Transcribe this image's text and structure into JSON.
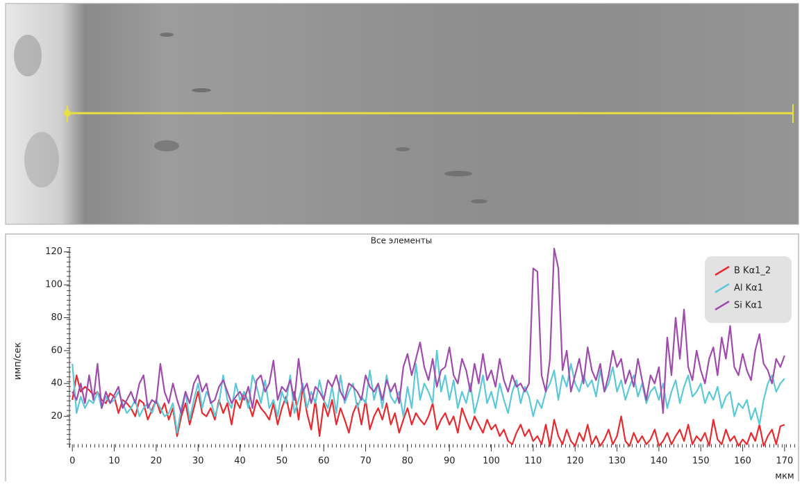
{
  "chart_data": {
    "type": "line",
    "title": "Все элементы",
    "x_label": "мкм",
    "y_label": "имп/сек",
    "x": [
      0,
      1,
      2,
      3,
      4,
      5,
      6,
      7,
      8,
      9,
      10,
      11,
      12,
      13,
      14,
      15,
      16,
      17,
      18,
      19,
      20,
      21,
      22,
      23,
      24,
      25,
      26,
      27,
      28,
      29,
      30,
      31,
      32,
      33,
      34,
      35,
      36,
      37,
      38,
      39,
      40,
      41,
      42,
      43,
      44,
      45,
      46,
      47,
      48,
      49,
      50,
      51,
      52,
      53,
      54,
      55,
      56,
      57,
      58,
      59,
      60,
      61,
      62,
      63,
      64,
      65,
      66,
      67,
      68,
      69,
      70,
      71,
      72,
      73,
      74,
      75,
      76,
      77,
      78,
      79,
      80,
      81,
      82,
      83,
      84,
      85,
      86,
      87,
      88,
      89,
      90,
      91,
      92,
      93,
      94,
      95,
      96,
      97,
      98,
      99,
      100,
      101,
      102,
      103,
      104,
      105,
      106,
      107,
      108,
      109,
      110,
      111,
      112,
      113,
      114,
      115,
      116,
      117,
      118,
      119,
      120,
      121,
      122,
      123,
      124,
      125,
      126,
      127,
      128,
      129,
      130,
      131,
      132,
      133,
      134,
      135,
      136,
      137,
      138,
      139,
      140,
      141,
      142,
      143,
      144,
      145,
      146,
      147,
      148,
      149,
      150,
      151,
      152,
      153,
      154,
      155,
      156,
      157,
      158,
      159,
      160,
      161,
      162,
      163,
      164,
      165,
      166,
      167,
      168,
      169,
      170
    ],
    "series": [
      {
        "name": "B Kα1_2",
        "color": "#e8292e",
        "values": [
          30,
          45,
          35,
          38,
          36,
          33,
          35,
          30,
          28,
          34,
          32,
          22,
          30,
          28,
          25,
          20,
          30,
          28,
          18,
          24,
          30,
          22,
          28,
          18,
          25,
          8,
          20,
          28,
          15,
          25,
          35,
          22,
          20,
          25,
          18,
          30,
          22,
          28,
          15,
          30,
          25,
          35,
          28,
          20,
          30,
          25,
          22,
          18,
          28,
          15,
          25,
          32,
          20,
          35,
          18,
          38,
          22,
          12,
          30,
          8,
          28,
          20,
          30,
          15,
          25,
          18,
          10,
          22,
          28,
          15,
          30,
          12,
          20,
          25,
          18,
          28,
          15,
          22,
          10,
          18,
          25,
          15,
          22,
          18,
          15,
          20,
          28,
          12,
          18,
          22,
          15,
          20,
          10,
          25,
          18,
          12,
          20,
          15,
          10,
          18,
          12,
          15,
          8,
          12,
          5,
          3,
          10,
          15,
          8,
          12,
          5,
          8,
          3,
          15,
          2,
          18,
          8,
          3,
          12,
          5,
          2,
          10,
          5,
          15,
          3,
          8,
          2,
          6,
          12,
          3,
          8,
          20,
          5,
          2,
          10,
          4,
          8,
          3,
          6,
          12,
          2,
          5,
          10,
          3,
          8,
          12,
          5,
          15,
          3,
          8,
          5,
          10,
          2,
          18,
          6,
          3,
          12,
          5,
          8,
          2,
          6,
          3,
          10,
          5,
          15,
          2,
          8,
          12,
          3,
          14,
          15
        ]
      },
      {
        "name": "Al Kα1",
        "color": "#5bc8d8",
        "values": [
          52,
          22,
          32,
          25,
          30,
          28,
          35,
          25,
          32,
          28,
          30,
          35,
          28,
          22,
          25,
          30,
          20,
          25,
          28,
          22,
          30,
          25,
          20,
          22,
          28,
          10,
          25,
          35,
          18,
          30,
          40,
          25,
          35,
          30,
          20,
          28,
          45,
          30,
          25,
          40,
          30,
          35,
          25,
          45,
          38,
          28,
          42,
          25,
          30,
          20,
          35,
          28,
          45,
          22,
          30,
          40,
          25,
          35,
          28,
          42,
          30,
          25,
          38,
          22,
          45,
          28,
          35,
          40,
          25,
          32,
          28,
          48,
          30,
          40,
          25,
          45,
          32,
          28,
          35,
          20,
          38,
          25,
          52,
          30,
          40,
          35,
          28,
          60,
          35,
          45,
          30,
          42,
          25,
          35,
          28,
          40,
          22,
          32,
          45,
          28,
          35,
          25,
          40,
          30,
          22,
          35,
          42,
          28,
          38,
          32,
          20,
          30,
          25,
          35,
          40,
          48,
          30,
          45,
          38,
          52,
          40,
          35,
          45,
          38,
          42,
          32,
          48,
          35,
          40,
          50,
          35,
          42,
          30,
          38,
          45,
          32,
          40,
          28,
          35,
          38,
          30,
          40,
          25,
          35,
          42,
          28,
          38,
          45,
          32,
          35,
          40,
          28,
          35,
          30,
          38,
          25,
          32,
          35,
          20,
          28,
          25,
          30,
          18,
          25,
          15,
          30,
          40,
          45,
          35,
          40,
          43
        ]
      },
      {
        "name": "Si Kα1",
        "color": "#a04aad",
        "values": [
          35,
          30,
          40,
          28,
          45,
          30,
          52,
          25,
          35,
          28,
          33,
          38,
          25,
          30,
          35,
          28,
          40,
          45,
          25,
          30,
          28,
          52,
          35,
          28,
          40,
          30,
          22,
          35,
          28,
          40,
          45,
          35,
          40,
          28,
          30,
          38,
          42,
          35,
          28,
          32,
          35,
          30,
          38,
          25,
          42,
          45,
          35,
          40,
          54,
          30,
          38,
          35,
          42,
          30,
          55,
          35,
          40,
          28,
          38,
          35,
          30,
          42,
          38,
          45,
          35,
          30,
          40,
          38,
          35,
          30,
          45,
          38,
          35,
          40,
          30,
          42,
          35,
          40,
          28,
          50,
          58,
          45,
          55,
          65,
          50,
          42,
          55,
          38,
          48,
          50,
          62,
          45,
          40,
          55,
          48,
          35,
          52,
          40,
          58,
          42,
          48,
          38,
          55,
          42,
          35,
          45,
          38,
          40,
          35,
          40,
          110,
          108,
          45,
          35,
          55,
          122,
          110,
          48,
          60,
          35,
          45,
          55,
          40,
          62,
          48,
          42,
          52,
          35,
          45,
          60,
          50,
          55,
          40,
          48,
          38,
          55,
          42,
          30,
          45,
          40,
          50,
          22,
          68,
          45,
          80,
          55,
          85,
          50,
          42,
          60,
          48,
          40,
          55,
          62,
          45,
          68,
          55,
          75,
          50,
          45,
          58,
          48,
          42,
          60,
          70,
          52,
          48,
          40,
          55,
          50,
          57
        ]
      }
    ],
    "xlim": [
      -0.7,
      173
    ],
    "xticks": [
      0,
      10,
      20,
      30,
      40,
      50,
      60,
      70,
      80,
      90,
      100,
      110,
      120,
      130,
      140,
      150,
      160,
      170
    ],
    "ylim": [
      0,
      122
    ],
    "yticks": [
      20,
      40,
      60,
      80,
      100,
      120
    ],
    "legend": "top-right",
    "grid": false
  }
}
